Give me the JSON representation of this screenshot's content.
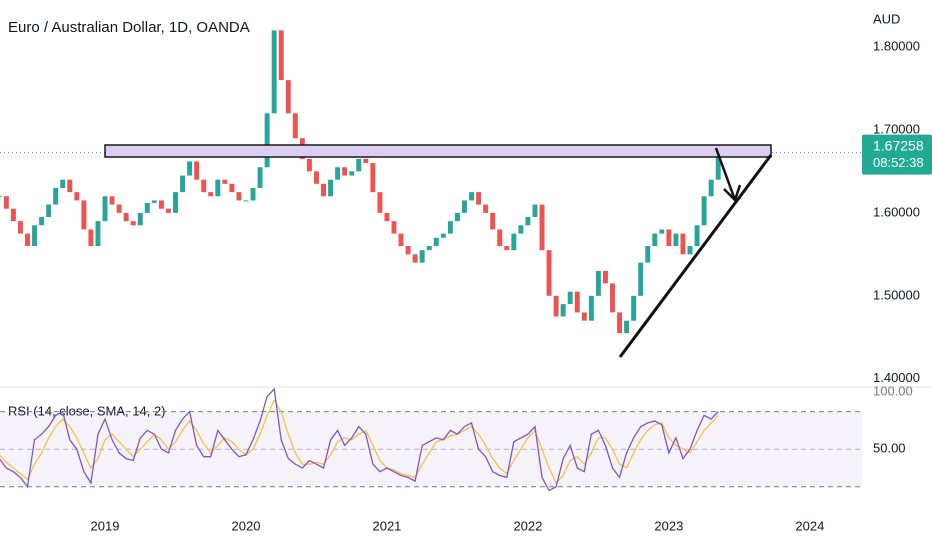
{
  "chart_data": [
    {
      "type": "candlestick",
      "title": "Euro / Australian Dollar, 1D, OANDA",
      "currency": "AUD",
      "countdown": "08:52:38",
      "up_color": "#26a69a",
      "down_color": "#ef5350",
      "last_color": "#22ab94",
      "xlim": [
        2018.255,
        2024.37
      ],
      "xticks": [
        2019,
        2020,
        2021,
        2022,
        2023,
        2024
      ],
      "ylim": [
        1.3937,
        1.8566
      ],
      "yticks": [
        {
          "value": 1.8,
          "label": "1.80000"
        },
        {
          "value": 1.7,
          "label": "1.70000"
        },
        {
          "value": 1.6,
          "label": "1.60000"
        },
        {
          "value": 1.5,
          "label": "1.50000"
        },
        {
          "value": 1.4,
          "label": "1.40000"
        }
      ],
      "x": [
        2018.25,
        2018.3,
        2018.35,
        2018.4,
        2018.45,
        2018.5,
        2018.55,
        2018.6,
        2018.65,
        2018.7,
        2018.75,
        2018.8,
        2018.85,
        2018.9,
        2018.95,
        2019.0,
        2019.05,
        2019.1,
        2019.15,
        2019.2,
        2019.25,
        2019.3,
        2019.35,
        2019.4,
        2019.45,
        2019.5,
        2019.55,
        2019.6,
        2019.65,
        2019.7,
        2019.75,
        2019.8,
        2019.85,
        2019.9,
        2019.95,
        2020.0,
        2020.05,
        2020.1,
        2020.15,
        2020.2,
        2020.25,
        2020.3,
        2020.35,
        2020.4,
        2020.45,
        2020.5,
        2020.55,
        2020.6,
        2020.65,
        2020.7,
        2020.75,
        2020.8,
        2020.85,
        2020.9,
        2020.95,
        2021.0,
        2021.05,
        2021.1,
        2021.15,
        2021.2,
        2021.25,
        2021.3,
        2021.35,
        2021.4,
        2021.45,
        2021.5,
        2021.55,
        2021.6,
        2021.65,
        2021.7,
        2021.75,
        2021.8,
        2021.85,
        2021.9,
        2021.95,
        2022.0,
        2022.05,
        2022.1,
        2022.15,
        2022.2,
        2022.25,
        2022.3,
        2022.35,
        2022.4,
        2022.45,
        2022.5,
        2022.55,
        2022.6,
        2022.65,
        2022.7,
        2022.75,
        2022.8,
        2022.85,
        2022.9,
        2022.95,
        2023.0,
        2023.05,
        2023.1,
        2023.15,
        2023.2,
        2023.25,
        2023.3,
        2023.35
      ],
      "values": [
        1.62,
        1.605,
        1.59,
        1.575,
        1.56,
        1.585,
        1.595,
        1.61,
        1.63,
        1.64,
        1.625,
        1.615,
        1.58,
        1.56,
        1.59,
        1.62,
        1.61,
        1.6,
        1.59,
        1.585,
        1.6,
        1.612,
        1.615,
        1.605,
        1.6,
        1.625,
        1.645,
        1.662,
        1.64,
        1.625,
        1.62,
        1.64,
        1.635,
        1.625,
        1.615,
        1.615,
        1.63,
        1.655,
        1.72,
        1.82,
        1.76,
        1.72,
        1.69,
        1.665,
        1.65,
        1.635,
        1.62,
        1.64,
        1.655,
        1.645,
        1.65,
        1.665,
        1.66,
        1.625,
        1.6,
        1.59,
        1.575,
        1.56,
        1.55,
        1.54,
        1.555,
        1.56,
        1.57,
        1.575,
        1.59,
        1.6,
        1.615,
        1.625,
        1.61,
        1.6,
        1.58,
        1.56,
        1.555,
        1.575,
        1.585,
        1.595,
        1.61,
        1.555,
        1.5,
        1.475,
        1.49,
        1.505,
        1.48,
        1.47,
        1.5,
        1.53,
        1.515,
        1.48,
        1.455,
        1.47,
        1.5,
        1.54,
        1.56,
        1.575,
        1.58,
        1.56,
        1.575,
        1.55,
        1.56,
        1.585,
        1.62,
        1.64,
        1.67258
      ]
    },
    {
      "type": "line",
      "title": "RSI (14, close, SMA, 14, 2)",
      "top_label": "100.00",
      "ylim": [
        20.3,
        81.5
      ],
      "yticks": [
        {
          "value": 50,
          "label": "50.00"
        }
      ],
      "bands": [
        30,
        70
      ],
      "band_color": "#7e57c2",
      "series": [
        {
          "color": "#7e57c2",
          "values": [
            45,
            40,
            38,
            35,
            30,
            55,
            58,
            62,
            68,
            70,
            55,
            50,
            38,
            32,
            58,
            66,
            55,
            48,
            45,
            44,
            56,
            60,
            58,
            50,
            48,
            60,
            66,
            70,
            52,
            46,
            46,
            60,
            55,
            50,
            46,
            47,
            55,
            65,
            78,
            82,
            55,
            45,
            42,
            40,
            44,
            42,
            40,
            55,
            60,
            52,
            56,
            62,
            58,
            42,
            38,
            40,
            38,
            36,
            35,
            33,
            52,
            54,
            56,
            55,
            60,
            58,
            62,
            64,
            50,
            46,
            38,
            36,
            35,
            54,
            56,
            58,
            62,
            35,
            28,
            30,
            45,
            52,
            40,
            38,
            58,
            60,
            52,
            40,
            35,
            48,
            56,
            62,
            64,
            65,
            63,
            48,
            56,
            45,
            50,
            60,
            68,
            66,
            70
          ]
        },
        {
          "color": "#f5c242",
          "values": [
            47,
            43,
            40,
            37,
            34,
            42,
            48,
            56,
            62,
            66,
            62,
            56,
            48,
            40,
            45,
            55,
            58,
            54,
            50,
            46,
            50,
            54,
            58,
            55,
            50,
            54,
            60,
            65,
            60,
            53,
            48,
            52,
            56,
            54,
            50,
            47,
            50,
            58,
            68,
            76,
            70,
            58,
            48,
            42,
            42,
            43,
            42,
            47,
            54,
            56,
            55,
            58,
            60,
            52,
            44,
            40,
            39,
            37,
            36,
            35,
            42,
            48,
            54,
            55,
            57,
            58,
            60,
            62,
            58,
            52,
            45,
            40,
            37,
            44,
            50,
            56,
            60,
            50,
            40,
            32,
            36,
            44,
            46,
            42,
            48,
            56,
            56,
            50,
            42,
            40,
            48,
            55,
            60,
            63,
            64,
            56,
            52,
            50,
            48,
            54,
            60,
            64,
            68
          ]
        }
      ]
    }
  ]
}
